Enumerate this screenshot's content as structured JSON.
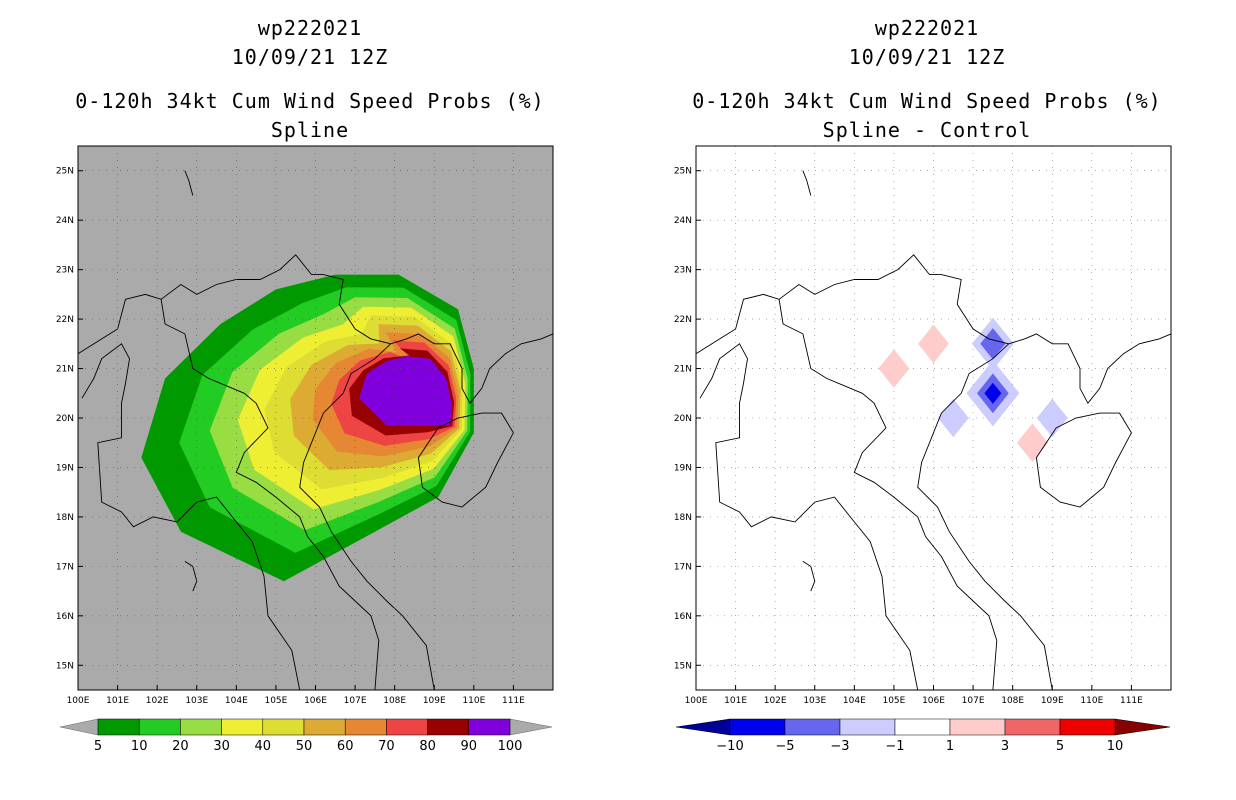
{
  "chart_data": [
    {
      "type": "filled-contour-map",
      "storm_id": "wp222021",
      "datetime": "10/09/21 12Z",
      "title": "0-120h 34kt Cum Wind Speed Probs (%)",
      "subtitle": "Spline",
      "x_ticks": [
        "100E",
        "101E",
        "102E",
        "103E",
        "104E",
        "105E",
        "106E",
        "107E",
        "108E",
        "109E",
        "110E",
        "111E"
      ],
      "y_ticks": [
        "15N",
        "16N",
        "17N",
        "18N",
        "19N",
        "20N",
        "21N",
        "22N",
        "23N",
        "24N",
        "25N"
      ],
      "lon_range": [
        100,
        112
      ],
      "lat_range": [
        14.5,
        25.5
      ],
      "background": "#aaaaaa",
      "levels": [
        5,
        10,
        20,
        30,
        40,
        50,
        60,
        70,
        80,
        90,
        100
      ],
      "colorbar_labels": [
        "5",
        "10",
        "20",
        "30",
        "40",
        "50",
        "60",
        "70",
        "80",
        "90",
        "100"
      ],
      "colors": [
        "#009900",
        "#22cc22",
        "#99dd44",
        "#eeee33",
        "#dddd33",
        "#ddaa33",
        "#e68833",
        "#ee4444",
        "#990000",
        "#8000dd"
      ],
      "core_max_center": [
        109.0,
        20.6
      ]
    },
    {
      "type": "filled-contour-map",
      "storm_id": "wp222021",
      "datetime": "10/09/21 12Z",
      "title": "0-120h 34kt Cum Wind Speed Probs (%)",
      "subtitle": "Spline - Control",
      "x_ticks": [
        "100E",
        "101E",
        "102E",
        "103E",
        "104E",
        "105E",
        "106E",
        "107E",
        "108E",
        "109E",
        "110E",
        "111E"
      ],
      "y_ticks": [
        "15N",
        "16N",
        "17N",
        "18N",
        "19N",
        "20N",
        "21N",
        "22N",
        "23N",
        "24N",
        "25N"
      ],
      "lon_range": [
        100,
        112
      ],
      "lat_range": [
        14.5,
        25.5
      ],
      "background": "#ffffff",
      "levels": [
        -10,
        -5,
        -3,
        -1,
        1,
        3,
        5,
        10
      ],
      "colorbar_labels": [
        "−10",
        "−5",
        "−3",
        "−1",
        "1",
        "3",
        "5",
        "10"
      ],
      "colors": [
        "#000099",
        "#0000ee",
        "#6666ee",
        "#ccccff",
        "#ffffff",
        "#ffcccc",
        "#ee6666",
        "#ee0000",
        "#880000"
      ],
      "anomalies": [
        {
          "lon": 106.0,
          "lat": 21.5,
          "value": 2
        },
        {
          "lon": 105.0,
          "lat": 21.0,
          "value": 2
        },
        {
          "lon": 107.5,
          "lat": 21.5,
          "value": -4
        },
        {
          "lon": 107.5,
          "lat": 20.5,
          "value": -6
        },
        {
          "lon": 106.5,
          "lat": 20.0,
          "value": -2
        },
        {
          "lon": 109.0,
          "lat": 20.0,
          "value": -2
        },
        {
          "lon": 108.5,
          "lat": 19.5,
          "value": 2
        }
      ]
    }
  ]
}
